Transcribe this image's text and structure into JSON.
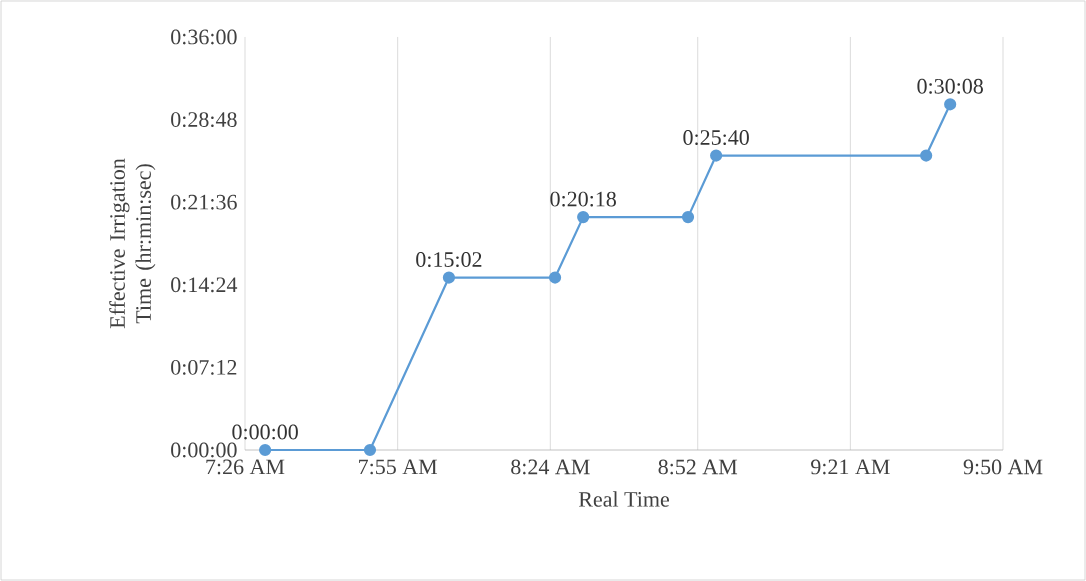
{
  "chart_data": {
    "type": "line",
    "xlabel": "Real Time",
    "ylabel": "Effective Irrigation Time (hr:min:sec)",
    "x": [
      7.497,
      7.829,
      8.079,
      8.415,
      8.504,
      8.836,
      8.925,
      9.59,
      9.666
    ],
    "series": [
      {
        "color": "#5b9bd5",
        "values": [
          0,
          0,
          15.033,
          15.033,
          20.3,
          20.3,
          25.667,
          25.667,
          30.133
        ],
        "value_labels": [
          "0:00:00",
          null,
          "0:15:02",
          null,
          "0:20:18",
          null,
          "0:25:40",
          null,
          "0:30:08"
        ]
      }
    ],
    "xlim": [
      7.4333,
      9.8333
    ],
    "xticks": [
      {
        "value": 7.4333,
        "label": "7:26 AM"
      },
      {
        "value": 7.9167,
        "label": "7:55 AM"
      },
      {
        "value": 8.4,
        "label": "8:24 AM"
      },
      {
        "value": 8.8667,
        "label": "8:52 AM"
      },
      {
        "value": 9.35,
        "label": "9:21 AM"
      },
      {
        "value": 9.8333,
        "label": "9:50 AM"
      }
    ],
    "ylim": [
      0,
      36
    ],
    "yticks": [
      {
        "value": 0,
        "label": "0:00:00"
      },
      {
        "value": 7.2,
        "label": "0:07:12"
      },
      {
        "value": 14.4,
        "label": "0:14:24"
      },
      {
        "value": 21.6,
        "label": "0:21:36"
      },
      {
        "value": 28.8,
        "label": "0:28:48"
      },
      {
        "value": 36,
        "label": "0:36:00"
      }
    ],
    "grid": "x",
    "marker": "circle",
    "line_style": "solid"
  }
}
